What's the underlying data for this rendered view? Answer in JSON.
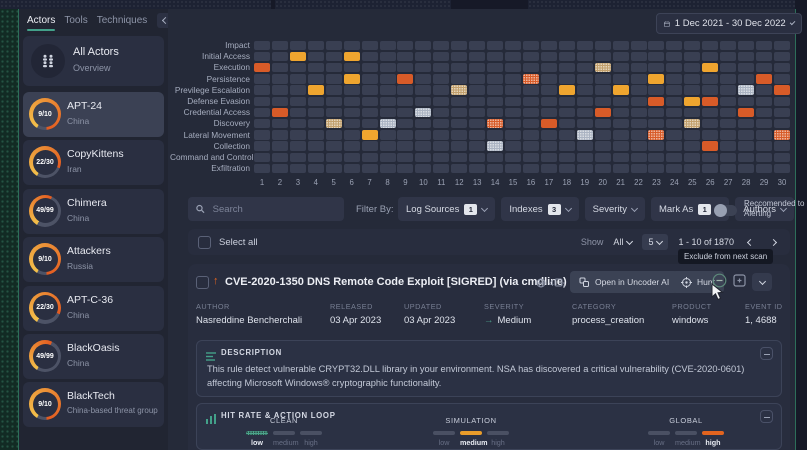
{
  "colors": {
    "accent_teal": "#43a18a",
    "amber": "#efa52f",
    "orange": "#d85b28",
    "tan": "#c2a06d",
    "gray": "#aab3c2",
    "track": "#4d5366",
    "ring_start": "#f3c14b",
    "ring_end": "#e35a20"
  },
  "icons": [
    "chevron-left-icon",
    "people-icon",
    "calendar-icon",
    "chevron-down-icon",
    "search-icon",
    "toggle-switch",
    "checkbox",
    "up-arrow-icon",
    "globe-icon",
    "translate-icon",
    "uncoder-icon",
    "hunt-icon",
    "minus-circle-icon",
    "export-icon",
    "lines-icon",
    "chart-icon",
    "arrow-right-icon",
    "mouse-cursor"
  ],
  "sidebar": {
    "tabs": [
      {
        "label": "Actors",
        "active": true
      },
      {
        "label": "Tools",
        "active": false
      },
      {
        "label": "Techniques",
        "active": false
      }
    ],
    "all_actors": {
      "title": "All Actors",
      "subtitle": "Overview"
    },
    "actors": [
      {
        "name": "APT-24",
        "score": "9/10",
        "pct": 90,
        "origin": "China",
        "selected": true
      },
      {
        "name": "CopyKittens",
        "score": "22/30",
        "pct": 73,
        "origin": "Iran",
        "selected": false
      },
      {
        "name": "Chimera",
        "score": "49/99",
        "pct": 49,
        "origin": "China",
        "selected": false
      },
      {
        "name": "Attackers",
        "score": "9/10",
        "pct": 90,
        "origin": "Russia",
        "selected": false
      },
      {
        "name": "APT-C-36",
        "score": "22/30",
        "pct": 73,
        "origin": "China",
        "selected": false
      },
      {
        "name": "BlackOasis",
        "score": "49/99",
        "pct": 49,
        "origin": "China",
        "selected": false
      },
      {
        "name": "BlackTech",
        "score": "9/10",
        "pct": 90,
        "origin": "China-based threat group",
        "selected": false
      }
    ]
  },
  "header": {
    "date_range": "1 Dec 2021 - 30 Dec 2022"
  },
  "heatmap": {
    "type": "heatmap",
    "rows": [
      "Impact",
      "Initial Access",
      "Execution",
      "Persistence",
      "Previlege Escalation",
      "Defense Evasion",
      "Credential Access",
      "Discovery",
      "Lateral Movement",
      "Collection",
      "Command and Control",
      "Exfiltration"
    ],
    "columns": [
      "1",
      "2",
      "3",
      "4",
      "5",
      "6",
      "7",
      "8",
      "9",
      "10",
      "11",
      "12",
      "13",
      "14",
      "15",
      "16",
      "17",
      "18",
      "19",
      "20",
      "21",
      "22",
      "23",
      "24",
      "25",
      "26",
      "27",
      "28",
      "29",
      "30"
    ],
    "cells": [
      {
        "r": 1,
        "c": 3,
        "color": "amber",
        "dotted": false
      },
      {
        "r": 1,
        "c": 6,
        "color": "amber",
        "dotted": false
      },
      {
        "r": 2,
        "c": 1,
        "color": "orange",
        "dotted": false
      },
      {
        "r": 2,
        "c": 20,
        "color": "tan",
        "dotted": true
      },
      {
        "r": 2,
        "c": 26,
        "color": "amber",
        "dotted": false
      },
      {
        "r": 3,
        "c": 6,
        "color": "amber",
        "dotted": false
      },
      {
        "r": 3,
        "c": 9,
        "color": "orange",
        "dotted": false
      },
      {
        "r": 3,
        "c": 16,
        "color": "orange",
        "dotted": true
      },
      {
        "r": 3,
        "c": 23,
        "color": "amber",
        "dotted": false
      },
      {
        "r": 3,
        "c": 29,
        "color": "orange",
        "dotted": false
      },
      {
        "r": 4,
        "c": 4,
        "color": "amber",
        "dotted": false
      },
      {
        "r": 4,
        "c": 12,
        "color": "tan",
        "dotted": true
      },
      {
        "r": 4,
        "c": 18,
        "color": "amber",
        "dotted": false
      },
      {
        "r": 4,
        "c": 21,
        "color": "amber",
        "dotted": false
      },
      {
        "r": 4,
        "c": 28,
        "color": "gray",
        "dotted": true
      },
      {
        "r": 4,
        "c": 30,
        "color": "orange",
        "dotted": false
      },
      {
        "r": 5,
        "c": 23,
        "color": "orange",
        "dotted": false
      },
      {
        "r": 5,
        "c": 25,
        "color": "amber",
        "dotted": false
      },
      {
        "r": 5,
        "c": 26,
        "color": "orange",
        "dotted": false
      },
      {
        "r": 6,
        "c": 2,
        "color": "orange",
        "dotted": false
      },
      {
        "r": 6,
        "c": 10,
        "color": "gray",
        "dotted": true
      },
      {
        "r": 6,
        "c": 20,
        "color": "orange",
        "dotted": false
      },
      {
        "r": 6,
        "c": 28,
        "color": "orange",
        "dotted": false
      },
      {
        "r": 7,
        "c": 5,
        "color": "tan",
        "dotted": true
      },
      {
        "r": 7,
        "c": 8,
        "color": "gray",
        "dotted": true
      },
      {
        "r": 7,
        "c": 14,
        "color": "orange",
        "dotted": true
      },
      {
        "r": 7,
        "c": 17,
        "color": "orange",
        "dotted": false
      },
      {
        "r": 7,
        "c": 25,
        "color": "tan",
        "dotted": true
      },
      {
        "r": 8,
        "c": 7,
        "color": "amber",
        "dotted": false
      },
      {
        "r": 8,
        "c": 19,
        "color": "gray",
        "dotted": true
      },
      {
        "r": 8,
        "c": 23,
        "color": "orange",
        "dotted": true
      },
      {
        "r": 8,
        "c": 30,
        "color": "orange",
        "dotted": true
      },
      {
        "r": 9,
        "c": 14,
        "color": "gray",
        "dotted": true
      },
      {
        "r": 9,
        "c": 26,
        "color": "orange",
        "dotted": false
      }
    ]
  },
  "filters": {
    "search_placeholder": "Search",
    "filter_by_label": "Filter By:",
    "dropdowns": [
      {
        "label": "Log Sources",
        "badge": "1"
      },
      {
        "label": "Indexes",
        "badge": "3"
      },
      {
        "label": "Severity",
        "badge": ""
      },
      {
        "label": "Mark As",
        "badge": "1"
      },
      {
        "label": "Authors",
        "badge": ""
      }
    ],
    "toggle_label": "Reccomended to Alerting",
    "toggle_on": false
  },
  "list_controls": {
    "select_all": "Select all",
    "show_label": "Show",
    "show_value": "All",
    "page_size": "5",
    "range": "1 - 10 of 1870"
  },
  "tooltip": "Exclude from next scan",
  "rule": {
    "title": "CVE-2020-1350 DNS Remote Code Exploit [SIGRED] (via cmdline)",
    "globe_count": "4",
    "uncoder_label": "Open in Uncoder AI",
    "hunt_label": "Hunt",
    "meta": [
      {
        "label": "AUTHOR",
        "value": "Nasreddine Bencherchali",
        "icon": ""
      },
      {
        "label": "RELEASED",
        "value": "03 Apr 2023",
        "icon": ""
      },
      {
        "label": "UPDATED",
        "value": "03 Apr 2023",
        "icon": ""
      },
      {
        "label": "SEVERITY",
        "value": "Medium",
        "icon": "arrow-right"
      },
      {
        "label": "CATEGORY",
        "value": "process_creation",
        "icon": ""
      },
      {
        "label": "PRODUCT",
        "value": "windows",
        "icon": ""
      },
      {
        "label": "EVENT ID",
        "value": "1, 4688",
        "icon": ""
      }
    ],
    "description": {
      "title": "DESCRIPTION",
      "text": "This rule detect vulnerable CRYPT32.DLL library in your environment. NSA has discovered a critical vulnerability (CVE-2020-0601) affecting Microsoft Windows® cryptographic functionality."
    },
    "hit_rate": {
      "title": "HIT RATE & ACTION LOOP",
      "levels": [
        "low",
        "medium",
        "high"
      ],
      "groups": [
        {
          "name": "CLEAN",
          "active": "low",
          "color": "#4da28c"
        },
        {
          "name": "SIMULATION",
          "active": "medium",
          "color": "#e89c2b"
        },
        {
          "name": "GLOBAL",
          "active": "high",
          "color": "#e2641f"
        }
      ]
    }
  }
}
